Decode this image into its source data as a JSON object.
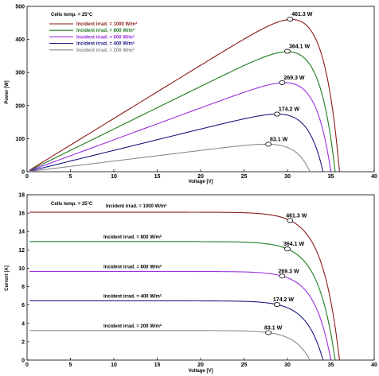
{
  "chart_data": [
    {
      "type": "line",
      "xlabel": "Voltage [V]",
      "ylabel": "Power [W]",
      "xlim": [
        0,
        40
      ],
      "ylim": [
        0,
        500
      ],
      "xticks": [
        0,
        5,
        10,
        15,
        20,
        25,
        30,
        35,
        40
      ],
      "yticks": [
        0,
        100,
        200,
        300,
        400,
        500
      ],
      "grid": false,
      "legend_position": "top-left",
      "legend_title": "Cells temp. = 25°C",
      "series": [
        {
          "name": "Incident irrad. = 1000 W/m²",
          "color": "#8b1a1a",
          "voc": 36.0,
          "isc": 16.1,
          "mpp_v": 30.3,
          "mpp_p": 461.3,
          "mpp_label": "461.3 W"
        },
        {
          "name": "Incident irrad. = 800 W/m²",
          "color": "#1f7a1f",
          "voc": 35.5,
          "isc": 12.9,
          "mpp_v": 30.0,
          "mpp_p": 364.1,
          "mpp_label": "364.1 W"
        },
        {
          "name": "Incident irrad. = 600 W/m²",
          "color": "#9b30e0",
          "voc": 35.0,
          "isc": 9.65,
          "mpp_v": 29.4,
          "mpp_p": 269.3,
          "mpp_label": "269.3 W"
        },
        {
          "name": "Incident irrad. = 400 W/m²",
          "color": "#1a1a80",
          "voc": 34.1,
          "isc": 6.45,
          "mpp_v": 28.8,
          "mpp_p": 174.2,
          "mpp_label": "174.2 W"
        },
        {
          "name": "Incident irrad. = 200 W/m²",
          "color": "#8c8c8c",
          "voc": 32.6,
          "isc": 3.22,
          "mpp_v": 27.8,
          "mpp_p": 83.1,
          "mpp_label": "83.1 W"
        }
      ]
    },
    {
      "type": "line",
      "xlabel": "Voltage [V]",
      "ylabel": "Current [A]",
      "xlim": [
        0,
        40
      ],
      "ylim": [
        0,
        18
      ],
      "xticks": [
        0,
        5,
        10,
        15,
        20,
        25,
        30,
        35,
        40
      ],
      "yticks": [
        0,
        2,
        4,
        6,
        8,
        10,
        12,
        14,
        16,
        18
      ],
      "grid": false,
      "legend_title": "Cells temp. = 25°C",
      "series": [
        {
          "name": "Incident irrad. = 1000 W/m²",
          "color": "#8b1a1a",
          "voc": 36.0,
          "isc": 16.1,
          "mpp_v": 30.3,
          "mpp_i": 15.2,
          "mpp_label": "461.3 W"
        },
        {
          "name": "Incident irrad. = 800 W/m²",
          "color": "#1f7a1f",
          "voc": 35.5,
          "isc": 12.9,
          "mpp_v": 30.0,
          "mpp_i": 12.1,
          "mpp_label": "364.1 W"
        },
        {
          "name": "Incident irrad. = 600 W/m²",
          "color": "#9b30e0",
          "voc": 35.0,
          "isc": 9.65,
          "mpp_v": 29.4,
          "mpp_i": 9.15,
          "mpp_label": "269.3 W"
        },
        {
          "name": "Incident irrad. = 400 W/m²",
          "color": "#1a1a80",
          "voc": 34.1,
          "isc": 6.45,
          "mpp_v": 28.8,
          "mpp_i": 6.05,
          "mpp_label": "174.2 W"
        },
        {
          "name": "Incident irrad. = 200 W/m²",
          "color": "#8c8c8c",
          "voc": 32.6,
          "isc": 3.22,
          "mpp_v": 27.8,
          "mpp_i": 2.99,
          "mpp_label": "83.1 W"
        }
      ]
    }
  ]
}
